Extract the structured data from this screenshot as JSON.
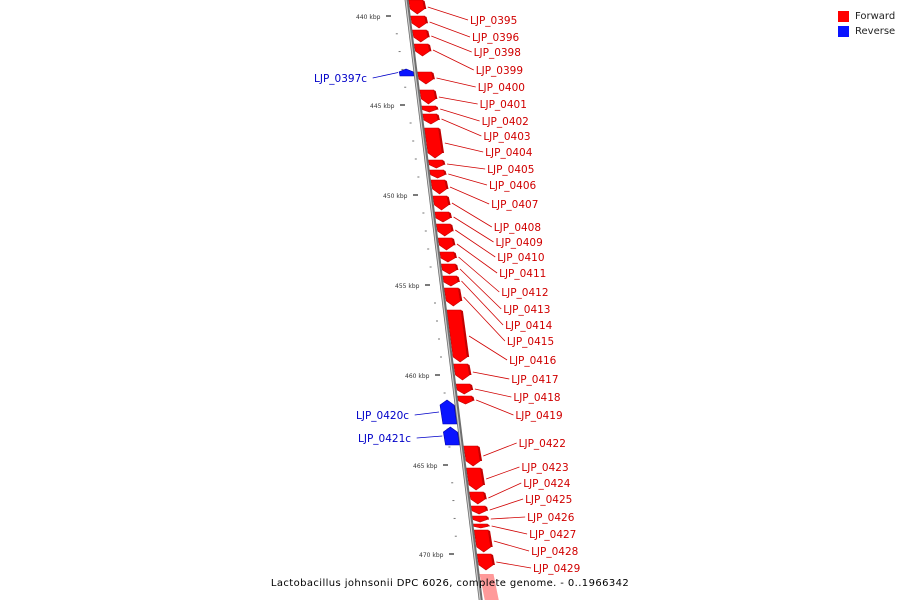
{
  "colors": {
    "forward": "#ff0000",
    "forward_dark": "#c40000",
    "reverse": "#0a14ff",
    "reverse_dark": "#0000a8",
    "backbone": "#9a9a9a",
    "forward_label": "#d00000",
    "reverse_label": "#0000c8"
  },
  "legend": [
    {
      "label": "Forward",
      "strand": "forward"
    },
    {
      "label": "Reverse",
      "strand": "reverse"
    }
  ],
  "caption": "Lactobacillus johnsonii DPC 6026, complete genome. - 0..1966342",
  "scale": {
    "tick_labels": [
      "440 kbp",
      "445 kbp",
      "450 kbp",
      "455 kbp",
      "460 kbp",
      "465 kbp",
      "470 kbp"
    ]
  },
  "genes": [
    {
      "name": "LJP_0395",
      "strand": "forward"
    },
    {
      "name": "LJP_0396",
      "strand": "forward"
    },
    {
      "name": "LJP_0398",
      "strand": "forward"
    },
    {
      "name": "LJP_0397c",
      "strand": "reverse"
    },
    {
      "name": "LJP_0399",
      "strand": "forward"
    },
    {
      "name": "LJP_0400",
      "strand": "forward"
    },
    {
      "name": "LJP_0401",
      "strand": "forward"
    },
    {
      "name": "LJP_0402",
      "strand": "forward"
    },
    {
      "name": "LJP_0403",
      "strand": "forward"
    },
    {
      "name": "LJP_0404",
      "strand": "forward"
    },
    {
      "name": "LJP_0405",
      "strand": "forward"
    },
    {
      "name": "LJP_0406",
      "strand": "forward"
    },
    {
      "name": "LJP_0407",
      "strand": "forward"
    },
    {
      "name": "LJP_0408",
      "strand": "forward"
    },
    {
      "name": "LJP_0409",
      "strand": "forward"
    },
    {
      "name": "LJP_0410",
      "strand": "forward"
    },
    {
      "name": "LJP_0411",
      "strand": "forward"
    },
    {
      "name": "LJP_0412",
      "strand": "forward"
    },
    {
      "name": "LJP_0413",
      "strand": "forward"
    },
    {
      "name": "LJP_0414",
      "strand": "forward"
    },
    {
      "name": "LJP_0415",
      "strand": "forward"
    },
    {
      "name": "LJP_0416",
      "strand": "forward"
    },
    {
      "name": "LJP_0417",
      "strand": "forward"
    },
    {
      "name": "LJP_0418",
      "strand": "forward"
    },
    {
      "name": "LJP_0419",
      "strand": "forward"
    },
    {
      "name": "LJP_0420c",
      "strand": "reverse"
    },
    {
      "name": "LJP_0421c",
      "strand": "reverse"
    },
    {
      "name": "LJP_0422",
      "strand": "forward"
    },
    {
      "name": "LJP_0423",
      "strand": "forward"
    },
    {
      "name": "LJP_0424",
      "strand": "forward"
    },
    {
      "name": "LJP_0425",
      "strand": "forward"
    },
    {
      "name": "LJP_0426",
      "strand": "forward"
    },
    {
      "name": "LJP_0427",
      "strand": "forward"
    },
    {
      "name": "LJP_0428",
      "strand": "forward"
    },
    {
      "name": "LJP_0429",
      "strand": "forward"
    }
  ]
}
